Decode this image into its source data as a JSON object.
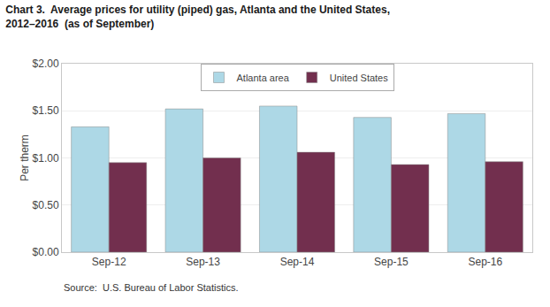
{
  "chart_data": {
    "type": "bar",
    "title": "Chart 3.  Average prices for utility (piped) gas, Atlanta and the United States,",
    "subtitle": "2012–2016  (as of September)",
    "y_label": "Per therm",
    "annotations": [
      "Source:  U.S. Bureau of Labor Statistics."
    ],
    "categories": [
      "Sep-12",
      "Sep-13",
      "Sep-14",
      "Sep-15",
      "Sep-16"
    ],
    "series": [
      {
        "name": "Atlanta area",
        "color": "#add8e6",
        "values": [
          1.33,
          1.52,
          1.55,
          1.43,
          1.47
        ]
      },
      {
        "name": "United States",
        "color": "#722f4e",
        "values": [
          0.95,
          1.0,
          1.06,
          0.93,
          0.96
        ]
      }
    ],
    "ylim": [
      0.0,
      2.0
    ],
    "yticks": [
      {
        "value": 0.0,
        "label": "$0.00"
      },
      {
        "value": 0.5,
        "label": "$0.50"
      },
      {
        "value": 1.0,
        "label": "$1.00"
      },
      {
        "value": 1.5,
        "label": "$1.50"
      },
      {
        "value": 2.0,
        "label": "$2.00"
      }
    ],
    "grid": true,
    "legend": "top"
  }
}
